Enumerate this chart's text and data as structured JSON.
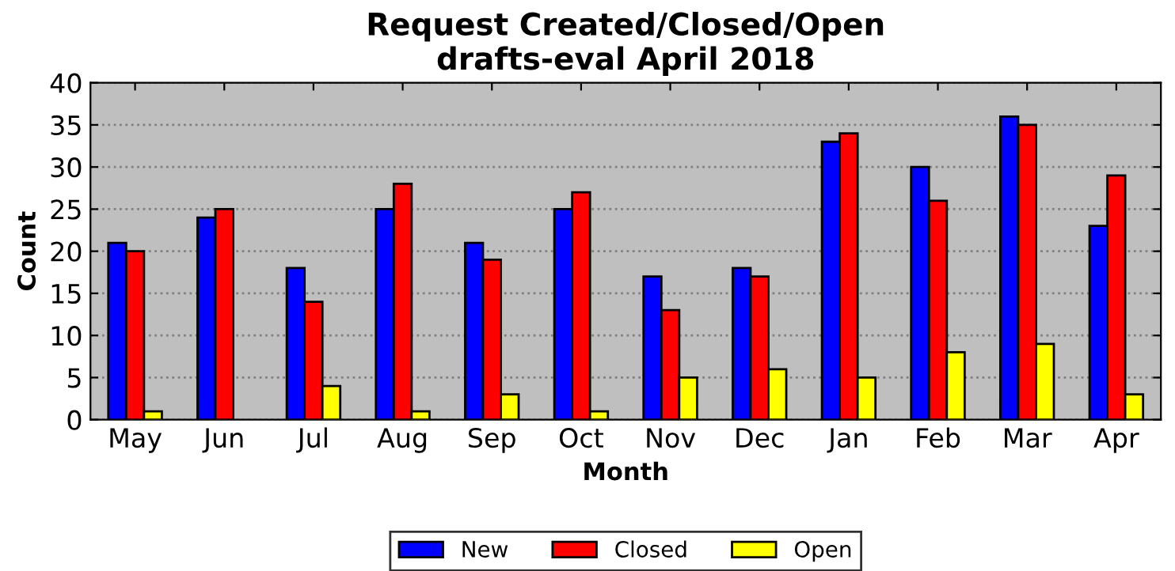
{
  "chart_data": {
    "type": "bar",
    "title": "Request Created/Closed/Open",
    "subtitle": "drafts-eval April 2018",
    "xlabel": "Month",
    "ylabel": "Count",
    "categories": [
      "May",
      "Jun",
      "Jul",
      "Aug",
      "Sep",
      "Oct",
      "Nov",
      "Dec",
      "Jan",
      "Feb",
      "Mar",
      "Apr"
    ],
    "series": [
      {
        "name": "New",
        "color": "#0000ff",
        "values": [
          21,
          24,
          18,
          25,
          21,
          25,
          17,
          18,
          33,
          30,
          36,
          23
        ]
      },
      {
        "name": "Closed",
        "color": "#ff0000",
        "values": [
          20,
          25,
          14,
          28,
          19,
          27,
          13,
          17,
          34,
          26,
          35,
          29
        ]
      },
      {
        "name": "Open",
        "color": "#ffff00",
        "values": [
          1,
          null,
          4,
          1,
          3,
          1,
          5,
          6,
          5,
          8,
          9,
          3
        ]
      }
    ],
    "ylim": [
      0,
      40
    ],
    "yticks": [
      0,
      5,
      10,
      15,
      20,
      25,
      30,
      35,
      40
    ],
    "grid": "y",
    "legend": "bottom"
  }
}
